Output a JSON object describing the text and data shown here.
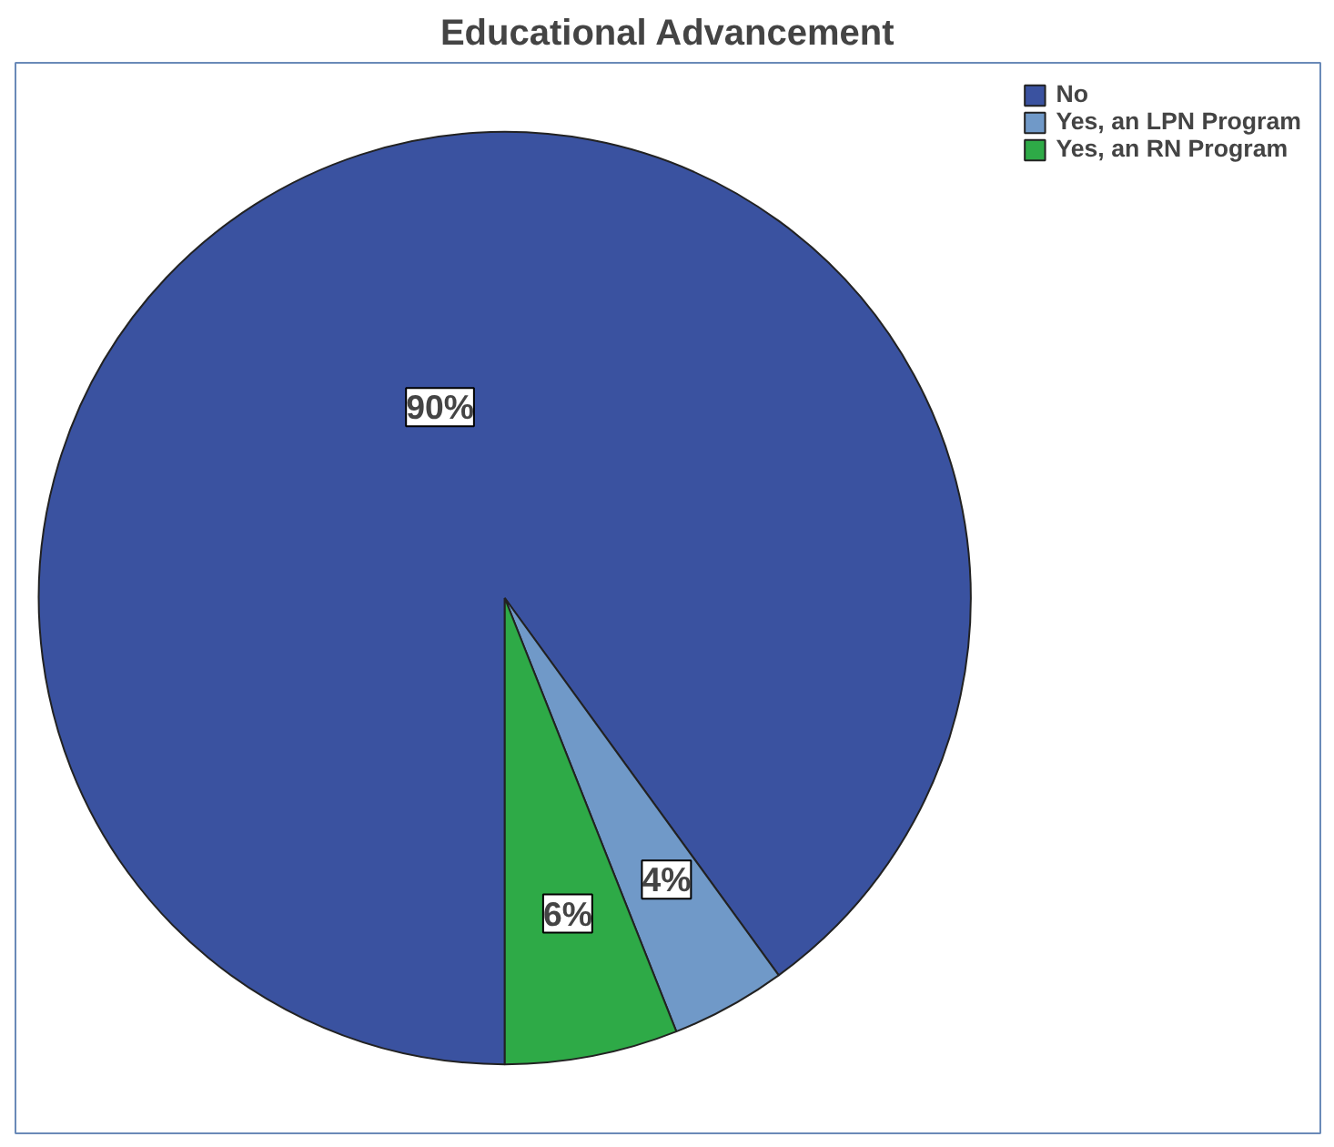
{
  "chart_data": {
    "type": "pie",
    "title": "Educational Advancement",
    "categories": [
      "No",
      "Yes, an LPN Program",
      "Yes, an RN Program"
    ],
    "values": [
      90,
      4,
      6
    ],
    "colors": [
      "#3a52a0",
      "#7099c8",
      "#2eaa47"
    ],
    "value_labels": [
      "90%",
      "4%",
      "6%"
    ],
    "legend": "top right"
  }
}
